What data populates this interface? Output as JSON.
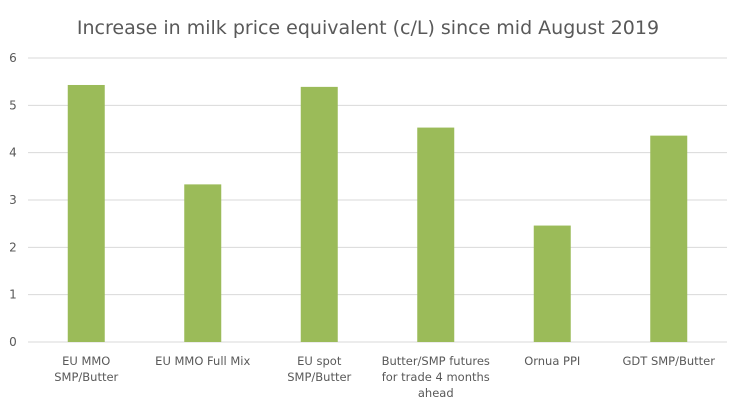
{
  "chart_data": {
    "type": "bar",
    "title": "Increase in milk price equivalent (c/L) since mid August 2019",
    "categories": [
      [
        "EU MMO",
        "SMP/Butter"
      ],
      [
        "EU MMO Full Mix"
      ],
      [
        "EU spot",
        "SMP/Butter"
      ],
      [
        "Butter/SMP futures",
        "for trade 4 months",
        "ahead"
      ],
      [
        "Ornua PPI"
      ],
      [
        "GDT SMP/Butter"
      ]
    ],
    "values": [
      5.43,
      3.33,
      5.39,
      4.53,
      2.46,
      4.36
    ],
    "xlabel": "",
    "ylabel": "",
    "ylim": [
      0,
      6
    ],
    "yticks": [
      "0",
      "1",
      "2",
      "3",
      "4",
      "5",
      "6"
    ],
    "grid": true,
    "legend": "none",
    "bar_color": "#9BBB59",
    "grid_color": "#D9D9D9"
  }
}
